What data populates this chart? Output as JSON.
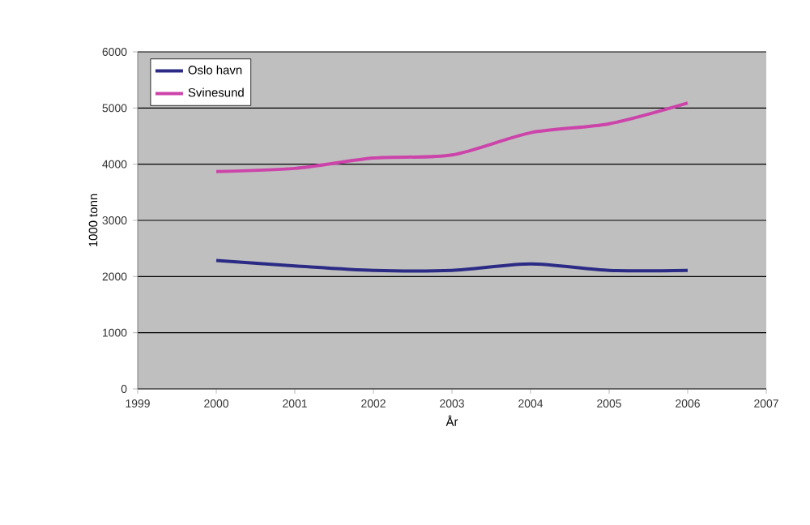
{
  "chart_data": {
    "type": "line",
    "xlabel": "År",
    "ylabel": "1000 tonn",
    "x": [
      2000,
      2001,
      2002,
      2003,
      2004,
      2005,
      2006
    ],
    "series": [
      {
        "name": "Oslo havn",
        "color": "#2b2b86",
        "values": [
          2285,
          2190,
          2110,
          2110,
          2225,
          2110,
          2110
        ]
      },
      {
        "name": "Svinesund",
        "color": "#cc44aa",
        "values": [
          3870,
          3925,
          4110,
          4165,
          4560,
          4720,
          5090
        ]
      }
    ],
    "xlim": [
      1999,
      2007
    ],
    "xticks": [
      1999,
      2000,
      2001,
      2002,
      2003,
      2004,
      2005,
      2006,
      2007
    ],
    "ylim": [
      0,
      6000
    ],
    "yticks": [
      0,
      1000,
      2000,
      3000,
      4000,
      5000,
      6000
    ],
    "grid": "y",
    "legend": "top left",
    "marker": "none",
    "line_style": "solid"
  }
}
